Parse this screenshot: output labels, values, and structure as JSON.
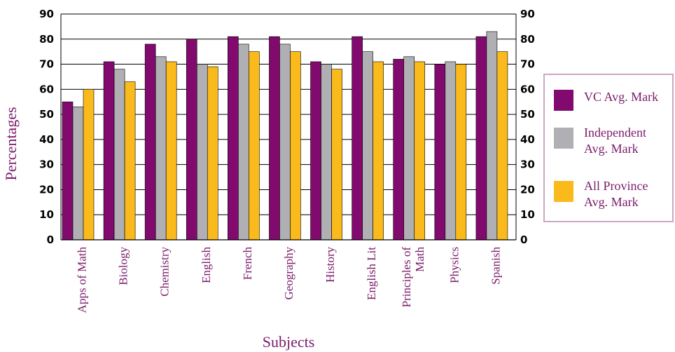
{
  "chart_data": {
    "type": "bar",
    "categories": [
      "Apps of Math",
      "Biology",
      "Chemistry",
      "English",
      "French",
      "Geography",
      "History",
      "English Lit",
      "Principles of Math",
      "Physics",
      "Spanish"
    ],
    "category_lines": [
      [
        "Apps of Math"
      ],
      [
        "Biology"
      ],
      [
        "Chemistry"
      ],
      [
        "English"
      ],
      [
        "French"
      ],
      [
        "Geography"
      ],
      [
        "History"
      ],
      [
        "English Lit"
      ],
      [
        "Principles of",
        "Math"
      ],
      [
        "Physics"
      ],
      [
        "Spanish"
      ]
    ],
    "series": [
      {
        "name": "VC Avg. Mark",
        "name_lines": [
          "VC Avg. Mark"
        ],
        "color": "#820a6e",
        "values": [
          55,
          71,
          78,
          80,
          81,
          81,
          71,
          81,
          72,
          70,
          81
        ]
      },
      {
        "name": "Independent Avg. Mark",
        "name_lines": [
          "Independent",
          "Avg. Mark"
        ],
        "color": "#b0b0b4",
        "values": [
          53,
          68,
          73,
          70,
          78,
          78,
          70,
          75,
          73,
          71,
          83
        ]
      },
      {
        "name": "All Province Avg. Mark",
        "name_lines": [
          "All Province",
          "Avg. Mark"
        ],
        "color": "#fbba1b",
        "values": [
          60,
          63,
          71,
          69,
          75,
          75,
          68,
          71,
          71,
          70,
          75
        ]
      }
    ],
    "xlabel": "Subjects",
    "ylabel": "Percentages",
    "ylim": [
      0,
      90
    ],
    "yticks": [
      0,
      10,
      20,
      30,
      40,
      50,
      60,
      70,
      80,
      90
    ],
    "grid": true,
    "legend_position": "right",
    "colors": {
      "text": "#7a1a6a",
      "legend_border": "#c9a8c4",
      "axis": "#000000"
    }
  }
}
